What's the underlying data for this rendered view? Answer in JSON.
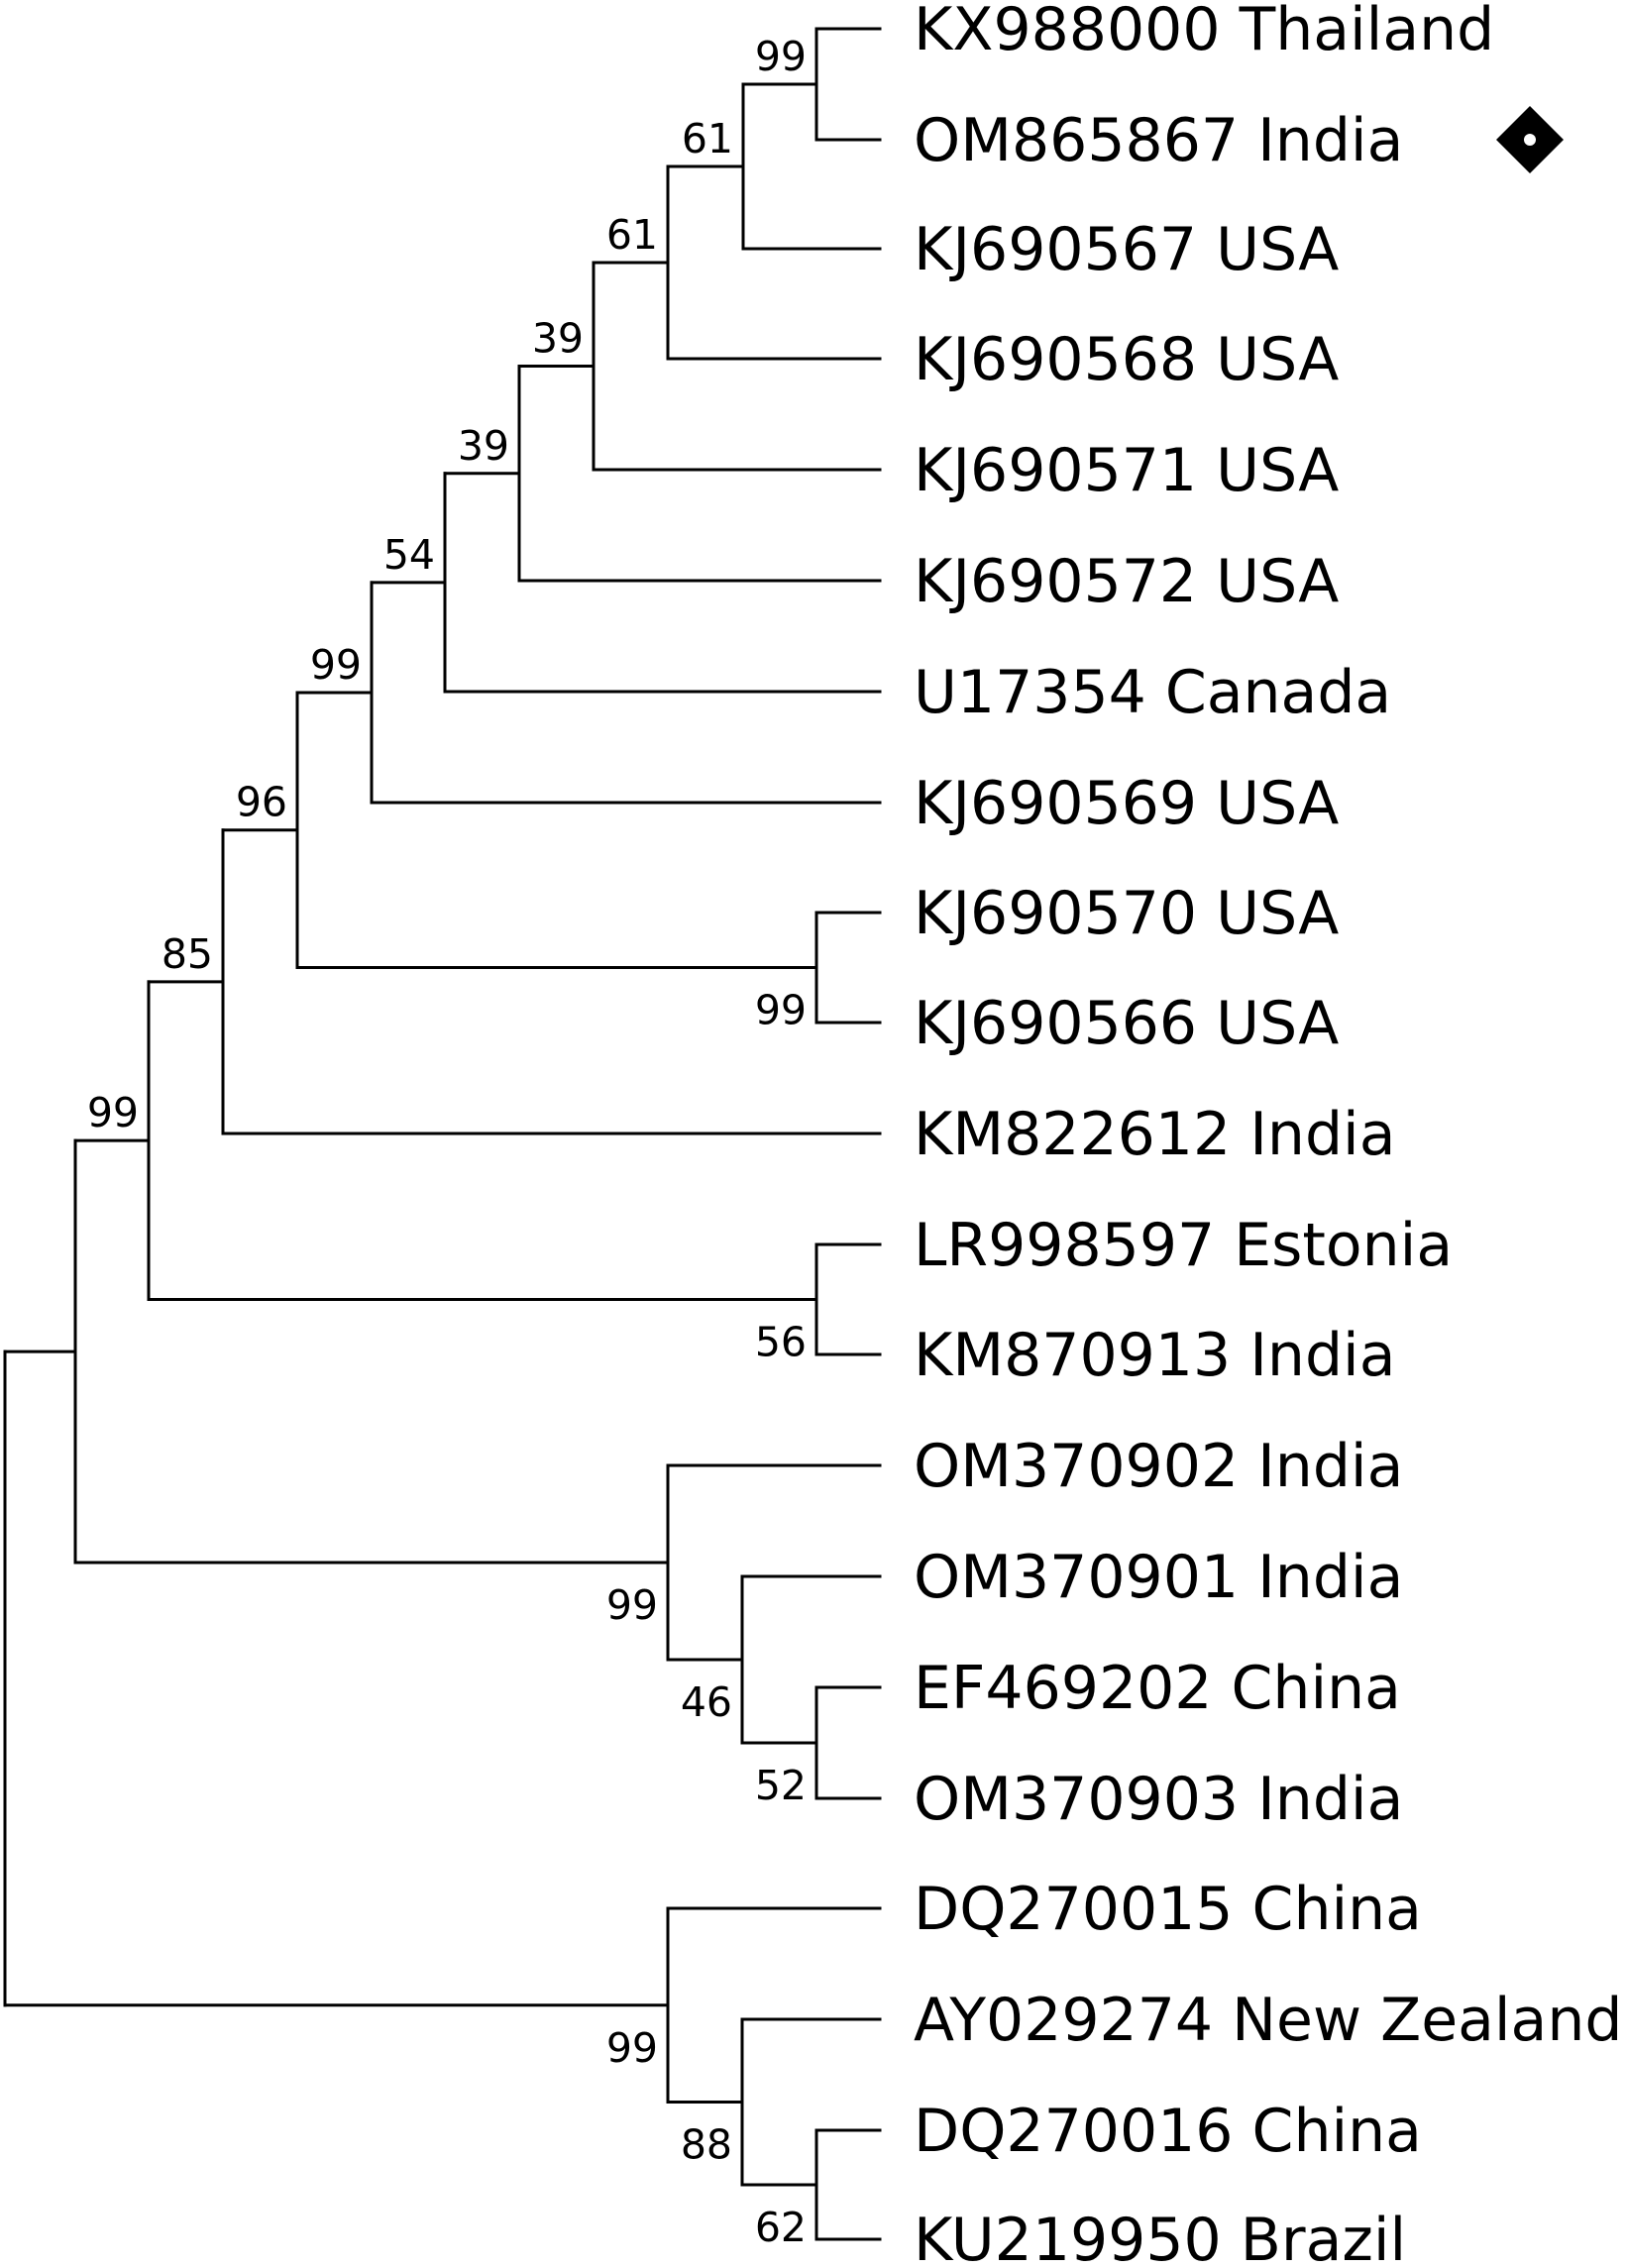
{
  "tree": {
    "leaves": [
      {
        "id": "KX988000",
        "label": "KX988000 Thailand"
      },
      {
        "id": "OM865867",
        "label": "OM865867 India",
        "marker": "diamond"
      },
      {
        "id": "KJ690567",
        "label": "KJ690567 USA"
      },
      {
        "id": "KJ690568",
        "label": "KJ690568 USA"
      },
      {
        "id": "KJ690571",
        "label": "KJ690571 USA"
      },
      {
        "id": "KJ690572",
        "label": "KJ690572 USA"
      },
      {
        "id": "U17354",
        "label": "U17354 Canada"
      },
      {
        "id": "KJ690569",
        "label": "KJ690569 USA"
      },
      {
        "id": "KJ690570",
        "label": "KJ690570 USA"
      },
      {
        "id": "KJ690566",
        "label": "KJ690566 USA"
      },
      {
        "id": "KM822612",
        "label": "KM822612 India"
      },
      {
        "id": "LR998597",
        "label": "LR998597 Estonia"
      },
      {
        "id": "KM870913",
        "label": "KM870913 India"
      },
      {
        "id": "OM370902",
        "label": "OM370902 India"
      },
      {
        "id": "OM370901",
        "label": "OM370901 India"
      },
      {
        "id": "EF469202",
        "label": "EF469202 China"
      },
      {
        "id": "OM370903",
        "label": "OM370903 India"
      },
      {
        "id": "DQ270015",
        "label": "DQ270015 China"
      },
      {
        "id": "AY029274",
        "label": "AY029274 New Zealand"
      },
      {
        "id": "DQ270016",
        "label": "DQ270016 China"
      },
      {
        "id": "KU219950",
        "label": "KU219950 Brazil"
      }
    ],
    "support_values": [
      "99",
      "61",
      "61",
      "39",
      "39",
      "54",
      "99",
      "96",
      "85",
      "99",
      "99",
      "56",
      "99",
      "46",
      "52",
      "99",
      "88",
      "62"
    ],
    "marker_color": "#000000"
  }
}
